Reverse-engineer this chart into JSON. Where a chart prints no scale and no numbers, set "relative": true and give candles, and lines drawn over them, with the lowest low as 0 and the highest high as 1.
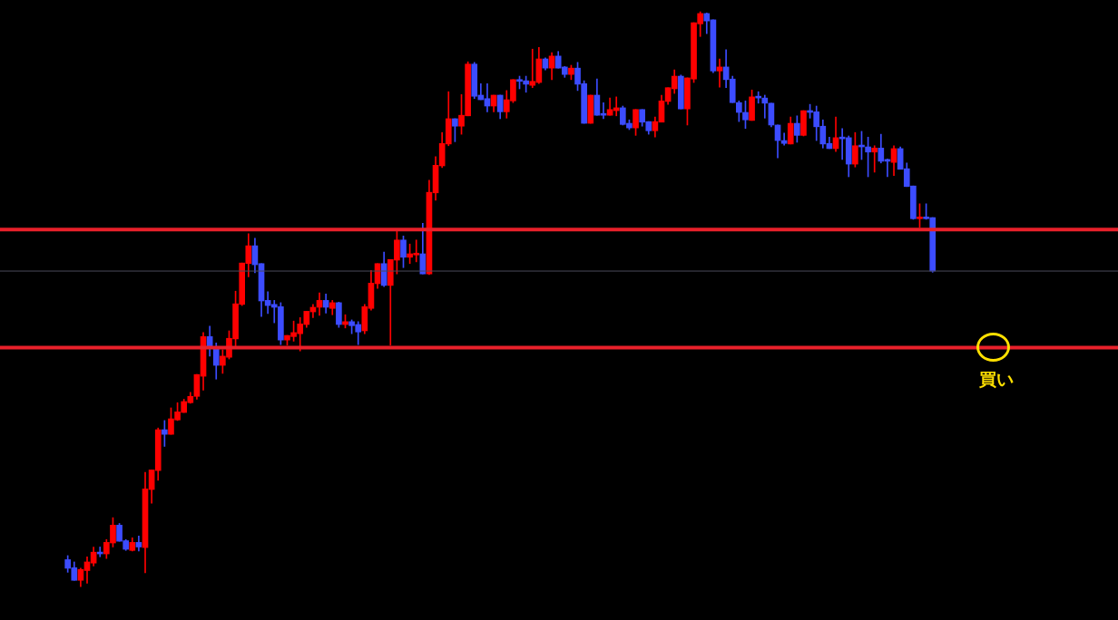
{
  "chart_data": {
    "type": "candlestick",
    "relative": true,
    "categories": [
      null,
      null,
      null,
      null,
      null,
      null,
      null,
      null,
      null,
      null,
      null,
      null,
      null,
      null,
      null,
      null,
      null,
      null,
      null,
      null,
      null,
      null,
      null,
      null,
      null,
      null,
      null,
      null,
      null,
      null,
      null,
      null,
      null,
      null,
      null,
      null,
      null,
      null,
      null,
      null,
      null,
      null,
      null,
      null,
      null,
      null,
      null,
      null,
      null,
      null,
      null,
      null,
      null,
      null,
      null,
      null,
      null,
      null,
      null,
      null,
      null,
      null,
      null,
      null,
      null,
      null,
      null,
      null,
      null,
      null,
      null,
      null,
      null,
      null,
      null,
      null,
      null,
      null,
      null,
      null,
      null,
      null,
      null,
      null,
      null,
      null,
      null,
      null,
      null,
      null,
      null,
      null,
      null,
      null,
      null,
      null,
      null,
      null,
      null,
      null,
      null,
      null,
      null,
      null,
      null,
      null,
      null,
      null,
      null,
      null,
      null,
      null,
      null,
      null,
      null,
      null,
      null,
      null,
      null,
      null,
      null,
      null,
      null,
      null,
      null,
      null,
      null,
      null,
      null,
      null,
      null,
      null,
      null,
      null,
      null
    ],
    "ohlc": [
      [
        0.047,
        0.054,
        0.025,
        0.032
      ],
      [
        0.033,
        0.043,
        0.011,
        0.011
      ],
      [
        0.011,
        0.032,
        0,
        0.03
      ],
      [
        0.028,
        0.052,
        0.006,
        0.043
      ],
      [
        0.041,
        0.069,
        0.036,
        0.06
      ],
      [
        0.058,
        0.069,
        0.052,
        0.057
      ],
      [
        0.057,
        0.082,
        0.049,
        0.077
      ],
      [
        0.076,
        0.12,
        0.069,
        0.107
      ],
      [
        0.107,
        0.11,
        0.079,
        0.079
      ],
      [
        0.08,
        0.082,
        0.063,
        0.065
      ],
      [
        0.063,
        0.085,
        0.062,
        0.077
      ],
      [
        0.077,
        0.088,
        0.062,
        0.069
      ],
      [
        0.068,
        0.199,
        0.024,
        0.17
      ],
      [
        0.169,
        0.203,
        0.145,
        0.203
      ],
      [
        0.202,
        0.276,
        0.185,
        0.273
      ],
      [
        0.273,
        0.289,
        0.244,
        0.265
      ],
      [
        0.265,
        0.311,
        0.265,
        0.292
      ],
      [
        0.29,
        0.32,
        0.289,
        0.304
      ],
      [
        0.303,
        0.326,
        0.303,
        0.322
      ],
      [
        0.32,
        0.338,
        0.319,
        0.331
      ],
      [
        0.331,
        0.369,
        0.326,
        0.369
      ],
      [
        0.366,
        0.442,
        0.342,
        0.435
      ],
      [
        0.435,
        0.453,
        0.401,
        0.418
      ],
      [
        0.416,
        0.424,
        0.361,
        0.385
      ],
      [
        0.385,
        0.412,
        0.371,
        0.401
      ],
      [
        0.399,
        0.445,
        0.396,
        0.432
      ],
      [
        0.431,
        0.514,
        0.418,
        0.492
      ],
      [
        0.491,
        0.563,
        0.489,
        0.563
      ],
      [
        0.562,
        0.614,
        0.539,
        0.593
      ],
      [
        0.593,
        0.606,
        0.546,
        0.56
      ],
      [
        0.562,
        0.562,
        0.47,
        0.497
      ],
      [
        0.498,
        0.513,
        0.475,
        0.489
      ],
      [
        0.491,
        0.498,
        0.459,
        0.486
      ],
      [
        0.487,
        0.494,
        0.421,
        0.429
      ],
      [
        0.429,
        0.437,
        0.42,
        0.437
      ],
      [
        0.435,
        0.462,
        0.427,
        0.442
      ],
      [
        0.44,
        0.468,
        0.41,
        0.457
      ],
      [
        0.456,
        0.479,
        0.451,
        0.479
      ],
      [
        0.478,
        0.491,
        0.468,
        0.486
      ],
      [
        0.486,
        0.511,
        0.472,
        0.498
      ],
      [
        0.498,
        0.509,
        0.476,
        0.486
      ],
      [
        0.484,
        0.498,
        0.473,
        0.494
      ],
      [
        0.494,
        0.495,
        0.451,
        0.456
      ],
      [
        0.456,
        0.473,
        0.45,
        0.461
      ],
      [
        0.461,
        0.464,
        0.44,
        0.454
      ],
      [
        0.456,
        0.461,
        0.421,
        0.443
      ],
      [
        0.445,
        0.491,
        0.44,
        0.487
      ],
      [
        0.484,
        0.55,
        0.481,
        0.528
      ],
      [
        0.527,
        0.562,
        0.519,
        0.562
      ],
      [
        0.562,
        0.582,
        0.522,
        0.524
      ],
      [
        0.524,
        0.569,
        0.42,
        0.569
      ],
      [
        0.568,
        0.618,
        0.544,
        0.603
      ],
      [
        0.603,
        0.61,
        0.555,
        0.573
      ],
      [
        0.573,
        0.596,
        0.562,
        0.579
      ],
      [
        0.577,
        0.603,
        0.565,
        0.579
      ],
      [
        0.579,
        0.632,
        0.544,
        0.544
      ],
      [
        0.544,
        0.707,
        0.543,
        0.686
      ],
      [
        0.685,
        0.748,
        0.672,
        0.733
      ],
      [
        0.732,
        0.79,
        0.729,
        0.771
      ],
      [
        0.77,
        0.861,
        0.767,
        0.814
      ],
      [
        0.814,
        0.814,
        0.774,
        0.801
      ],
      [
        0.801,
        0.856,
        0.787,
        0.82
      ],
      [
        0.819,
        0.913,
        0.819,
        0.909
      ],
      [
        0.909,
        0.912,
        0.849,
        0.853
      ],
      [
        0.855,
        0.875,
        0.847,
        0.847
      ],
      [
        0.849,
        0.875,
        0.826,
        0.836
      ],
      [
        0.836,
        0.855,
        0.826,
        0.855
      ],
      [
        0.855,
        0.855,
        0.814,
        0.826
      ],
      [
        0.826,
        0.863,
        0.815,
        0.847
      ],
      [
        0.845,
        0.882,
        0.842,
        0.882
      ],
      [
        0.88,
        0.888,
        0.866,
        0.879
      ],
      [
        0.88,
        0.888,
        0.86,
        0.874
      ],
      [
        0.872,
        0.935,
        0.868,
        0.879
      ],
      [
        0.877,
        0.938,
        0.875,
        0.918
      ],
      [
        0.918,
        0.92,
        0.899,
        0.902
      ],
      [
        0.902,
        0.929,
        0.882,
        0.923
      ],
      [
        0.923,
        0.931,
        0.902,
        0.902
      ],
      [
        0.904,
        0.905,
        0.886,
        0.891
      ],
      [
        0.891,
        0.907,
        0.882,
        0.902
      ],
      [
        0.902,
        0.912,
        0.863,
        0.874
      ],
      [
        0.875,
        0.88,
        0.806,
        0.806
      ],
      [
        0.806,
        0.855,
        0.806,
        0.855
      ],
      [
        0.855,
        0.883,
        0.82,
        0.82
      ],
      [
        0.822,
        0.842,
        0.814,
        0.82
      ],
      [
        0.82,
        0.85,
        0.82,
        0.83
      ],
      [
        0.828,
        0.852,
        0.819,
        0.833
      ],
      [
        0.833,
        0.836,
        0.803,
        0.804
      ],
      [
        0.806,
        0.812,
        0.795,
        0.798
      ],
      [
        0.798,
        0.83,
        0.785,
        0.83
      ],
      [
        0.83,
        0.83,
        0.801,
        0.808
      ],
      [
        0.809,
        0.809,
        0.787,
        0.793
      ],
      [
        0.793,
        0.817,
        0.782,
        0.809
      ],
      [
        0.808,
        0.855,
        0.808,
        0.845
      ],
      [
        0.844,
        0.868,
        0.839,
        0.868
      ],
      [
        0.866,
        0.899,
        0.858,
        0.888
      ],
      [
        0.888,
        0.89,
        0.831,
        0.831
      ],
      [
        0.831,
        0.885,
        0.803,
        0.885
      ],
      [
        0.883,
        0.981,
        0.877,
        0.981
      ],
      [
        0.979,
        1,
        0.957,
        0.997
      ],
      [
        0.997,
        0.998,
        0.962,
        0.984
      ],
      [
        0.986,
        0.986,
        0.894,
        0.897
      ],
      [
        0.897,
        0.918,
        0.869,
        0.904
      ],
      [
        0.904,
        0.934,
        0.868,
        0.882
      ],
      [
        0.883,
        0.888,
        0.842,
        0.842
      ],
      [
        0.842,
        0.845,
        0.809,
        0.825
      ],
      [
        0.825,
        0.845,
        0.797,
        0.812
      ],
      [
        0.811,
        0.864,
        0.811,
        0.852
      ],
      [
        0.852,
        0.861,
        0.841,
        0.85
      ],
      [
        0.85,
        0.855,
        0.815,
        0.841
      ],
      [
        0.841,
        0.841,
        0.8,
        0.803
      ],
      [
        0.803,
        0.803,
        0.746,
        0.776
      ],
      [
        0.776,
        0.789,
        0.768,
        0.771
      ],
      [
        0.77,
        0.817,
        0.77,
        0.806
      ],
      [
        0.806,
        0.819,
        0.773,
        0.785
      ],
      [
        0.785,
        0.828,
        0.784,
        0.828
      ],
      [
        0.826,
        0.839,
        0.815,
        0.825
      ],
      [
        0.826,
        0.836,
        0.776,
        0.8
      ],
      [
        0.801,
        0.812,
        0.763,
        0.77
      ],
      [
        0.771,
        0.782,
        0.762,
        0.762
      ],
      [
        0.762,
        0.817,
        0.757,
        0.781
      ],
      [
        0.781,
        0.797,
        0.743,
        0.779
      ],
      [
        0.781,
        0.784,
        0.713,
        0.735
      ],
      [
        0.735,
        0.79,
        0.73,
        0.767
      ],
      [
        0.767,
        0.792,
        0.743,
        0.765
      ],
      [
        0.765,
        0.782,
        0.713,
        0.756
      ],
      [
        0.756,
        0.767,
        0.721,
        0.763
      ],
      [
        0.763,
        0.787,
        0.737,
        0.74
      ],
      [
        0.741,
        0.744,
        0.713,
        0.74
      ],
      [
        0.738,
        0.767,
        0.715,
        0.762
      ],
      [
        0.762,
        0.765,
        0.726,
        0.726
      ],
      [
        0.727,
        0.737,
        0.696,
        0.696
      ],
      [
        0.697,
        0.697,
        0.639,
        0.64
      ],
      [
        0.64,
        0.666,
        0.625,
        0.642
      ],
      [
        0.642,
        0.666,
        0.639,
        0.64
      ],
      [
        0.642,
        0.642,
        0.547,
        0.549
      ]
    ],
    "colors": [
      "#3c4cff",
      "#3c4cff",
      "#ff0000",
      "#ff0000",
      "#ff0000",
      "#3c4cff",
      "#ff0000",
      "#ff0000",
      "#3c4cff",
      "#3c4cff",
      "#ff0000",
      "#3c4cff",
      "#ff0000",
      "#ff0000",
      "#ff0000",
      "#3c4cff",
      "#ff0000",
      "#ff0000",
      "#ff0000",
      "#ff0000",
      "#ff0000",
      "#ff0000",
      "#3c4cff",
      "#3c4cff",
      "#ff0000",
      "#ff0000",
      "#ff0000",
      "#ff0000",
      "#ff0000",
      "#3c4cff",
      "#3c4cff",
      "#3c4cff",
      "#3c4cff",
      "#3c4cff",
      "#ff0000",
      "#ff0000",
      "#ff0000",
      "#ff0000",
      "#ff0000",
      "#ff0000",
      "#3c4cff",
      "#ff0000",
      "#3c4cff",
      "#ff0000",
      "#3c4cff",
      "#3c4cff",
      "#ff0000",
      "#ff0000",
      "#ff0000",
      "#3c4cff",
      "#ff0000",
      "#ff0000",
      "#3c4cff",
      "#ff0000",
      "#ff0000",
      "#3c4cff",
      "#ff0000",
      "#ff0000",
      "#ff0000",
      "#ff0000",
      "#3c4cff",
      "#ff0000",
      "#ff0000",
      "#3c4cff",
      "#3c4cff",
      "#3c4cff",
      "#ff0000",
      "#3c4cff",
      "#ff0000",
      "#ff0000",
      "#3c4cff",
      "#3c4cff",
      "#ff0000",
      "#ff0000",
      "#3c4cff",
      "#ff0000",
      "#3c4cff",
      "#3c4cff",
      "#ff0000",
      "#3c4cff",
      "#3c4cff",
      "#ff0000",
      "#3c4cff",
      "#3c4cff",
      "#ff0000",
      "#ff0000",
      "#3c4cff",
      "#3c4cff",
      "#ff0000",
      "#3c4cff",
      "#3c4cff",
      "#ff0000",
      "#ff0000",
      "#ff0000",
      "#ff0000",
      "#3c4cff",
      "#ff0000",
      "#ff0000",
      "#ff0000",
      "#3c4cff",
      "#3c4cff",
      "#ff0000",
      "#3c4cff",
      "#3c4cff",
      "#3c4cff",
      "#3c4cff",
      "#ff0000",
      "#3c4cff",
      "#3c4cff",
      "#3c4cff",
      "#3c4cff",
      "#3c4cff",
      "#ff0000",
      "#3c4cff",
      "#ff0000",
      "#3c4cff",
      "#3c4cff",
      "#3c4cff",
      "#3c4cff",
      "#ff0000",
      "#3c4cff",
      "#3c4cff",
      "#ff0000",
      "#3c4cff",
      "#3c4cff",
      "#ff0000",
      "#3c4cff",
      "#3c4cff",
      "#ff0000",
      "#3c4cff",
      "#3c4cff",
      "#3c4cff",
      "#ff0000",
      "#3c4cff",
      "#3c4cff"
    ],
    "ref_lines": [
      {
        "axis": "y",
        "value": 0.549,
        "color": "#4a4a5a"
      },
      {
        "axis": "y",
        "value": 0.621,
        "color": "#e8202a"
      },
      {
        "axis": "y",
        "value": 0.416,
        "color": "#e8202a"
      }
    ],
    "annotations": [
      {
        "text": "買い",
        "y": 0.416
      }
    ]
  }
}
